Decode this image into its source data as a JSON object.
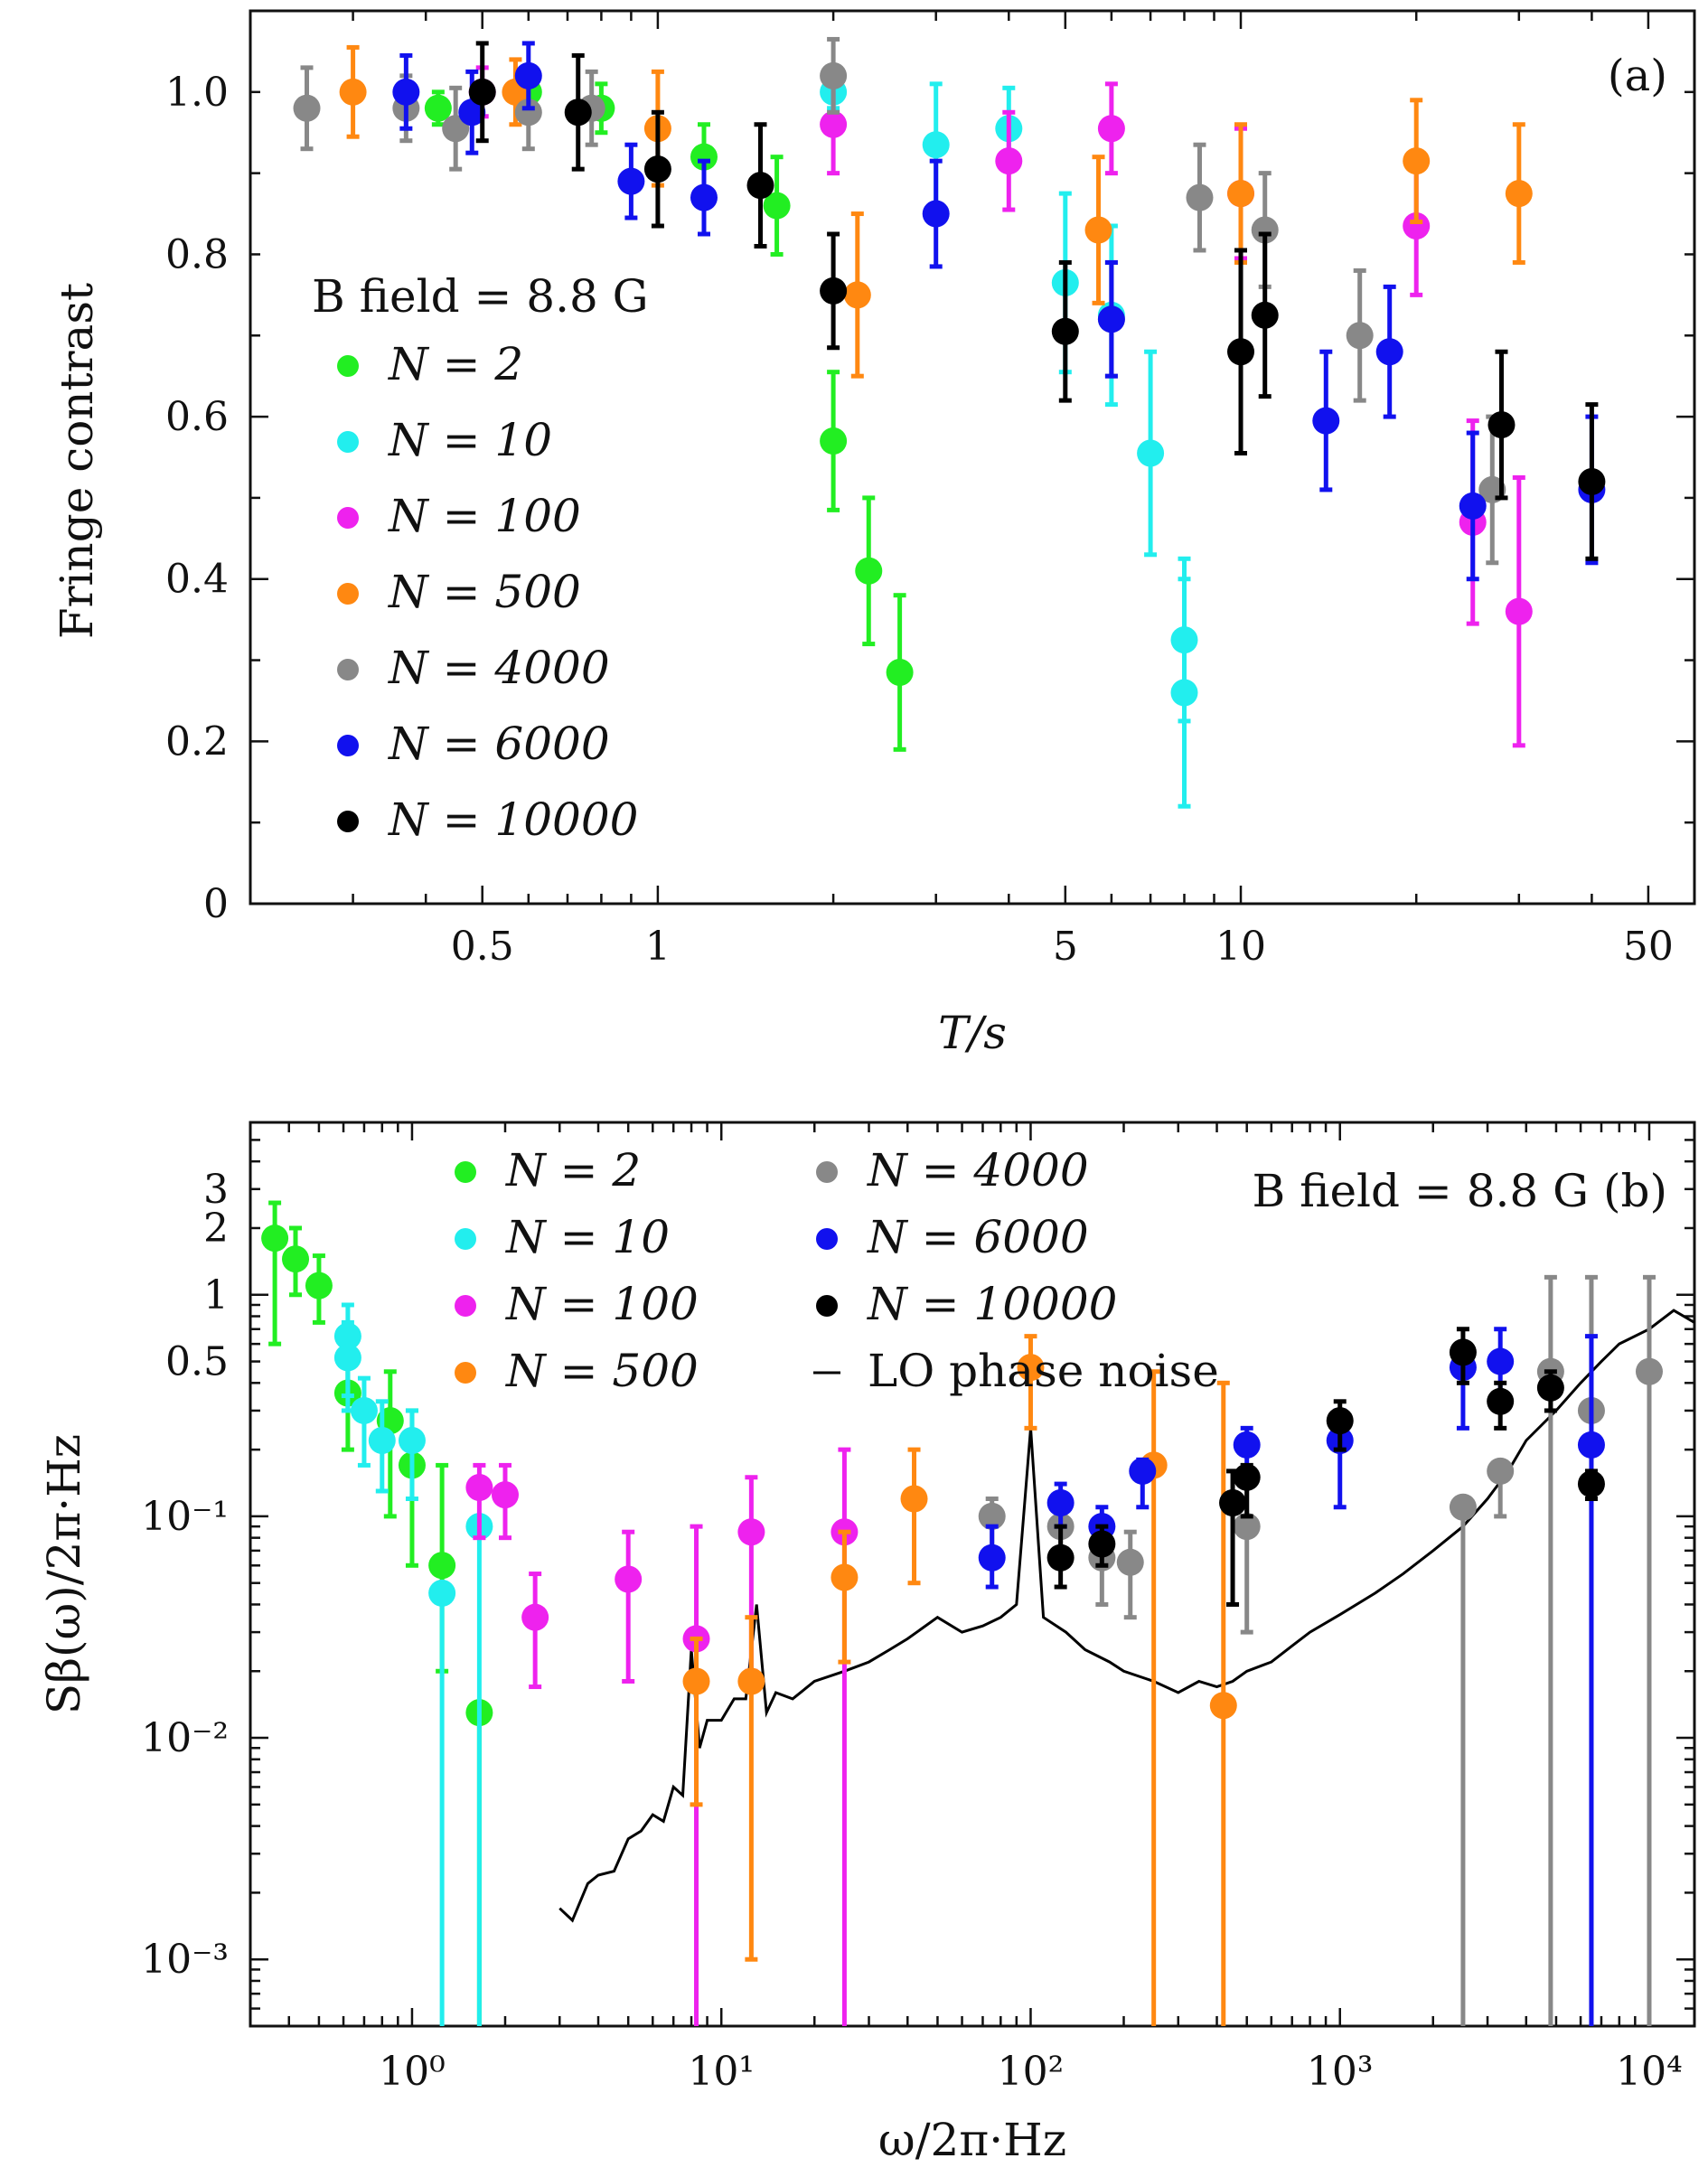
{
  "chart_data": [
    {
      "panel": "(a)",
      "type": "scatter",
      "title": "",
      "xlabel": "T/s",
      "ylabel": "Fringe contrast",
      "xscale": "log",
      "xlim": [
        0.2,
        60
      ],
      "ylim": [
        0,
        1.1
      ],
      "xticks": [
        0.5,
        1,
        5,
        10,
        50
      ],
      "xtick_labels": [
        "0.5",
        "1",
        "5",
        "10",
        "50"
      ],
      "yticks": [
        0,
        0.2,
        0.4,
        0.6,
        0.8,
        1.0
      ],
      "ytick_labels": [
        "0",
        "0.2",
        "0.4",
        "0.6",
        "0.8",
        "1.0"
      ],
      "grid": false,
      "legend_title": "B field = 8.8 G",
      "legend_placement": "center-left",
      "panel_label": "(a)",
      "series": [
        {
          "name": "N = 2",
          "color": "#22ee22",
          "points": [
            [
              0.42,
              0.98,
              0.02
            ],
            [
              0.6,
              1.0,
              0.03
            ],
            [
              0.8,
              0.98,
              0.03
            ],
            [
              1.2,
              0.92,
              0.04
            ],
            [
              1.6,
              0.86,
              0.06
            ],
            [
              2.0,
              0.57,
              0.085
            ],
            [
              2.3,
              0.41,
              0.09
            ],
            [
              2.6,
              0.285,
              0.095
            ]
          ]
        },
        {
          "name": "N = 10",
          "color": "#22eeee",
          "points": [
            [
              2.0,
              1.0,
              0.02
            ],
            [
              3.0,
              0.935,
              0.075
            ],
            [
              4.0,
              0.955,
              0.05
            ],
            [
              5.0,
              0.765,
              0.11
            ],
            [
              6.0,
              0.725,
              0.11
            ],
            [
              7.0,
              0.555,
              0.125
            ],
            [
              8.0,
              0.325,
              0.1
            ],
            [
              8.0,
              0.26,
              0.14
            ]
          ]
        },
        {
          "name": "N = 100",
          "color": "#ee22ee",
          "points": [
            [
              0.5,
              1.0,
              0.03
            ],
            [
              2.0,
              0.96,
              0.06
            ],
            [
              4.0,
              0.915,
              0.06
            ],
            [
              6.0,
              0.955,
              0.055
            ],
            [
              10.0,
              0.875,
              0.08
            ],
            [
              20.0,
              0.835,
              0.085
            ],
            [
              25.0,
              0.47,
              0.125
            ],
            [
              30.0,
              0.36,
              0.165
            ]
          ]
        },
        {
          "name": "N = 500",
          "color": "#ff8811",
          "points": [
            [
              0.3,
              1.0,
              0.055
            ],
            [
              0.57,
              1.0,
              0.04
            ],
            [
              1.0,
              0.955,
              0.07
            ],
            [
              2.2,
              0.75,
              0.1
            ],
            [
              5.7,
              0.83,
              0.09
            ],
            [
              10.0,
              0.875,
              0.085
            ],
            [
              20.0,
              0.915,
              0.075
            ],
            [
              30.0,
              0.875,
              0.085
            ]
          ]
        },
        {
          "name": "N = 4000",
          "color": "#888888",
          "points": [
            [
              0.25,
              0.98,
              0.05
            ],
            [
              0.37,
              0.98,
              0.04
            ],
            [
              0.45,
              0.955,
              0.05
            ],
            [
              0.6,
              0.975,
              0.045
            ],
            [
              0.77,
              0.98,
              0.045
            ],
            [
              2.0,
              1.02,
              0.045
            ],
            [
              6.0,
              0.72,
              0.07
            ],
            [
              8.5,
              0.87,
              0.065
            ],
            [
              11.0,
              0.83,
              0.07
            ],
            [
              16.0,
              0.7,
              0.08
            ],
            [
              27.0,
              0.51,
              0.09
            ]
          ]
        },
        {
          "name": "N = 6000",
          "color": "#1111ee",
          "points": [
            [
              0.37,
              1.0,
              0.045
            ],
            [
              0.48,
              0.975,
              0.05
            ],
            [
              0.6,
              1.02,
              0.04
            ],
            [
              0.9,
              0.89,
              0.045
            ],
            [
              1.2,
              0.87,
              0.045
            ],
            [
              3.0,
              0.85,
              0.065
            ],
            [
              6.0,
              0.72,
              0.07
            ],
            [
              14.0,
              0.595,
              0.085
            ],
            [
              18.0,
              0.68,
              0.08
            ],
            [
              25.0,
              0.49,
              0.09
            ],
            [
              40.0,
              0.51,
              0.09
            ]
          ]
        },
        {
          "name": "N = 10000",
          "color": "#000000",
          "points": [
            [
              0.5,
              1.0,
              0.06
            ],
            [
              0.73,
              0.975,
              0.07
            ],
            [
              1.0,
              0.905,
              0.07
            ],
            [
              1.5,
              0.885,
              0.075
            ],
            [
              2.0,
              0.755,
              0.07
            ],
            [
              5.0,
              0.705,
              0.085
            ],
            [
              10.0,
              0.68,
              0.125
            ],
            [
              11.0,
              0.725,
              0.1
            ],
            [
              28.0,
              0.59,
              0.09
            ],
            [
              40.0,
              0.52,
              0.095
            ]
          ]
        }
      ]
    },
    {
      "panel": "(b)",
      "type": "scatter",
      "title": "",
      "xlabel": "ω/2π·Hz",
      "ylabel": "Sβ(ω)/2π·Hz",
      "xscale": "log",
      "yscale": "log",
      "xlim": [
        0.3,
        14000
      ],
      "ylim": [
        0.0005,
        6
      ],
      "xticks": [
        1,
        10,
        100,
        1000,
        10000
      ],
      "xtick_labels": [
        "10⁰",
        "10¹",
        "10²",
        "10³",
        "10⁴"
      ],
      "yticks_major": [
        0.001,
        0.01,
        0.1
      ],
      "ytick_major_labels": [
        "10⁻³",
        "10⁻²",
        "10⁻¹"
      ],
      "yticks_minor_labeled": [
        0.5,
        1,
        2,
        3
      ],
      "ytick_minor_labels": [
        "0.5",
        "1",
        "2",
        "3"
      ],
      "grid": false,
      "legend_placement": "top",
      "annotation": "B field = 8.8 G (b)",
      "series": [
        {
          "name": "N = 2",
          "color": "#22ee22",
          "points": [
            [
              0.36,
              1.8,
              0.6,
              2.6
            ],
            [
              0.42,
              1.45,
              1.0,
              2.0
            ],
            [
              0.5,
              1.1,
              0.75,
              1.5
            ],
            [
              0.62,
              0.36,
              0.2,
              0.5
            ],
            [
              0.85,
              0.27,
              0.1,
              0.45
            ],
            [
              1.0,
              0.17,
              0.06,
              0.3
            ],
            [
              1.25,
              0.06,
              0.02,
              0.17
            ],
            [
              1.65,
              0.013,
              0.0005,
              0.013
            ]
          ]
        },
        {
          "name": "N = 10",
          "color": "#22eeee",
          "points": [
            [
              0.62,
              0.65,
              0.35,
              0.9
            ],
            [
              0.62,
              0.52,
              0.3,
              0.75
            ],
            [
              0.7,
              0.3,
              0.17,
              0.42
            ],
            [
              0.8,
              0.22,
              0.13,
              0.33
            ],
            [
              1.0,
              0.22,
              0.12,
              0.3
            ],
            [
              1.25,
              0.045,
              0.0005,
              0.045
            ],
            [
              1.65,
              0.09,
              0.0005,
              0.09
            ]
          ]
        },
        {
          "name": "N = 100",
          "color": "#ee22ee",
          "points": [
            [
              1.65,
              0.135,
              0.08,
              0.17
            ],
            [
              2.0,
              0.125,
              0.08,
              0.17
            ],
            [
              2.5,
              0.035,
              0.017,
              0.055
            ],
            [
              5.0,
              0.052,
              0.018,
              0.085
            ],
            [
              8.3,
              0.028,
              0.0005,
              0.09
            ],
            [
              12.5,
              0.085,
              0.02,
              0.15
            ],
            [
              25.0,
              0.085,
              0.0005,
              0.2
            ]
          ]
        },
        {
          "name": "N = 500",
          "color": "#ff8811",
          "points": [
            [
              8.3,
              0.018,
              0.005,
              0.028
            ],
            [
              12.5,
              0.018,
              0.001,
              0.035
            ],
            [
              25.0,
              0.053,
              0.022,
              0.085
            ],
            [
              42.0,
              0.12,
              0.05,
              0.2
            ],
            [
              100.0,
              0.47,
              0.25,
              0.65
            ],
            [
              250.0,
              0.17,
              0.0005,
              0.45
            ],
            [
              420.0,
              0.014,
              0.0005,
              0.4
            ]
          ]
        },
        {
          "name": "N = 4000",
          "color": "#888888",
          "points": [
            [
              75.0,
              0.1,
              0.07,
              0.12
            ],
            [
              125.0,
              0.09,
              0.07,
              0.11
            ],
            [
              170.0,
              0.065,
              0.04,
              0.09
            ],
            [
              210.0,
              0.062,
              0.035,
              0.085
            ],
            [
              500.0,
              0.09,
              0.03,
              0.17
            ],
            [
              2500.0,
              0.11,
              0.0005,
              0.11
            ],
            [
              3300.0,
              0.16,
              0.1,
              0.16
            ],
            [
              4800.0,
              0.45,
              0.0005,
              1.2
            ],
            [
              6500.0,
              0.3,
              0.0005,
              1.2
            ],
            [
              10000.0,
              0.45,
              0.0005,
              1.2
            ]
          ]
        },
        {
          "name": "N = 6000",
          "color": "#1111ee",
          "points": [
            [
              75.0,
              0.065,
              0.048,
              0.09
            ],
            [
              125.0,
              0.115,
              0.09,
              0.14
            ],
            [
              170.0,
              0.09,
              0.07,
              0.11
            ],
            [
              230.0,
              0.16,
              0.11,
              0.18
            ],
            [
              500.0,
              0.21,
              0.16,
              0.25
            ],
            [
              1000.0,
              0.22,
              0.11,
              0.3
            ],
            [
              2500.0,
              0.47,
              0.25,
              0.6
            ],
            [
              3300.0,
              0.5,
              0.3,
              0.7
            ],
            [
              6500.0,
              0.21,
              0.0005,
              0.65
            ]
          ]
        },
        {
          "name": "N = 10000",
          "color": "#000000",
          "points": [
            [
              125.0,
              0.065,
              0.048,
              0.09
            ],
            [
              170.0,
              0.075,
              0.06,
              0.09
            ],
            [
              450.0,
              0.115,
              0.04,
              0.16
            ],
            [
              500.0,
              0.15,
              0.1,
              0.17
            ],
            [
              1000.0,
              0.27,
              0.2,
              0.33
            ],
            [
              2500.0,
              0.55,
              0.4,
              0.7
            ],
            [
              3300.0,
              0.33,
              0.25,
              0.4
            ],
            [
              4800.0,
              0.38,
              0.3,
              0.45
            ],
            [
              6500.0,
              0.14,
              0.12,
              0.16
            ]
          ]
        },
        {
          "name": "LO phase noise",
          "color": "#000000",
          "line": [
            [
              3.0,
              0.0017
            ],
            [
              3.3,
              0.0015
            ],
            [
              3.7,
              0.0022
            ],
            [
              4.0,
              0.0024
            ],
            [
              4.5,
              0.0025
            ],
            [
              5.0,
              0.0035
            ],
            [
              5.5,
              0.0038
            ],
            [
              6.0,
              0.0045
            ],
            [
              6.5,
              0.0042
            ],
            [
              7.0,
              0.006
            ],
            [
              7.5,
              0.0055
            ],
            [
              8.0,
              0.025
            ],
            [
              8.5,
              0.009
            ],
            [
              9.0,
              0.012
            ],
            [
              10.0,
              0.012
            ],
            [
              11.0,
              0.015
            ],
            [
              12.0,
              0.015
            ],
            [
              13.0,
              0.04
            ],
            [
              14.0,
              0.013
            ],
            [
              15.0,
              0.016
            ],
            [
              17.0,
              0.015
            ],
            [
              20.0,
              0.018
            ],
            [
              25.0,
              0.02
            ],
            [
              30.0,
              0.022
            ],
            [
              35.0,
              0.025
            ],
            [
              40.0,
              0.028
            ],
            [
              50.0,
              0.035
            ],
            [
              60.0,
              0.03
            ],
            [
              70.0,
              0.032
            ],
            [
              80.0,
              0.035
            ],
            [
              90.0,
              0.04
            ],
            [
              100.0,
              0.25
            ],
            [
              110.0,
              0.035
            ],
            [
              130.0,
              0.03
            ],
            [
              150.0,
              0.025
            ],
            [
              180.0,
              0.022
            ],
            [
              200.0,
              0.02
            ],
            [
              250.0,
              0.018
            ],
            [
              300.0,
              0.016
            ],
            [
              350.0,
              0.018
            ],
            [
              400.0,
              0.017
            ],
            [
              450.0,
              0.018
            ],
            [
              500.0,
              0.02
            ],
            [
              600.0,
              0.022
            ],
            [
              700.0,
              0.026
            ],
            [
              800.0,
              0.03
            ],
            [
              1000.0,
              0.036
            ],
            [
              1300.0,
              0.045
            ],
            [
              1600.0,
              0.055
            ],
            [
              2000.0,
              0.07
            ],
            [
              2500.0,
              0.09
            ],
            [
              3000.0,
              0.12
            ],
            [
              3500.0,
              0.16
            ],
            [
              4000.0,
              0.22
            ],
            [
              5000.0,
              0.3
            ],
            [
              6000.0,
              0.4
            ],
            [
              7000.0,
              0.5
            ],
            [
              8000.0,
              0.6
            ],
            [
              10000.0,
              0.7
            ],
            [
              12000.0,
              0.85
            ],
            [
              14000.0,
              0.75
            ]
          ]
        }
      ]
    }
  ]
}
